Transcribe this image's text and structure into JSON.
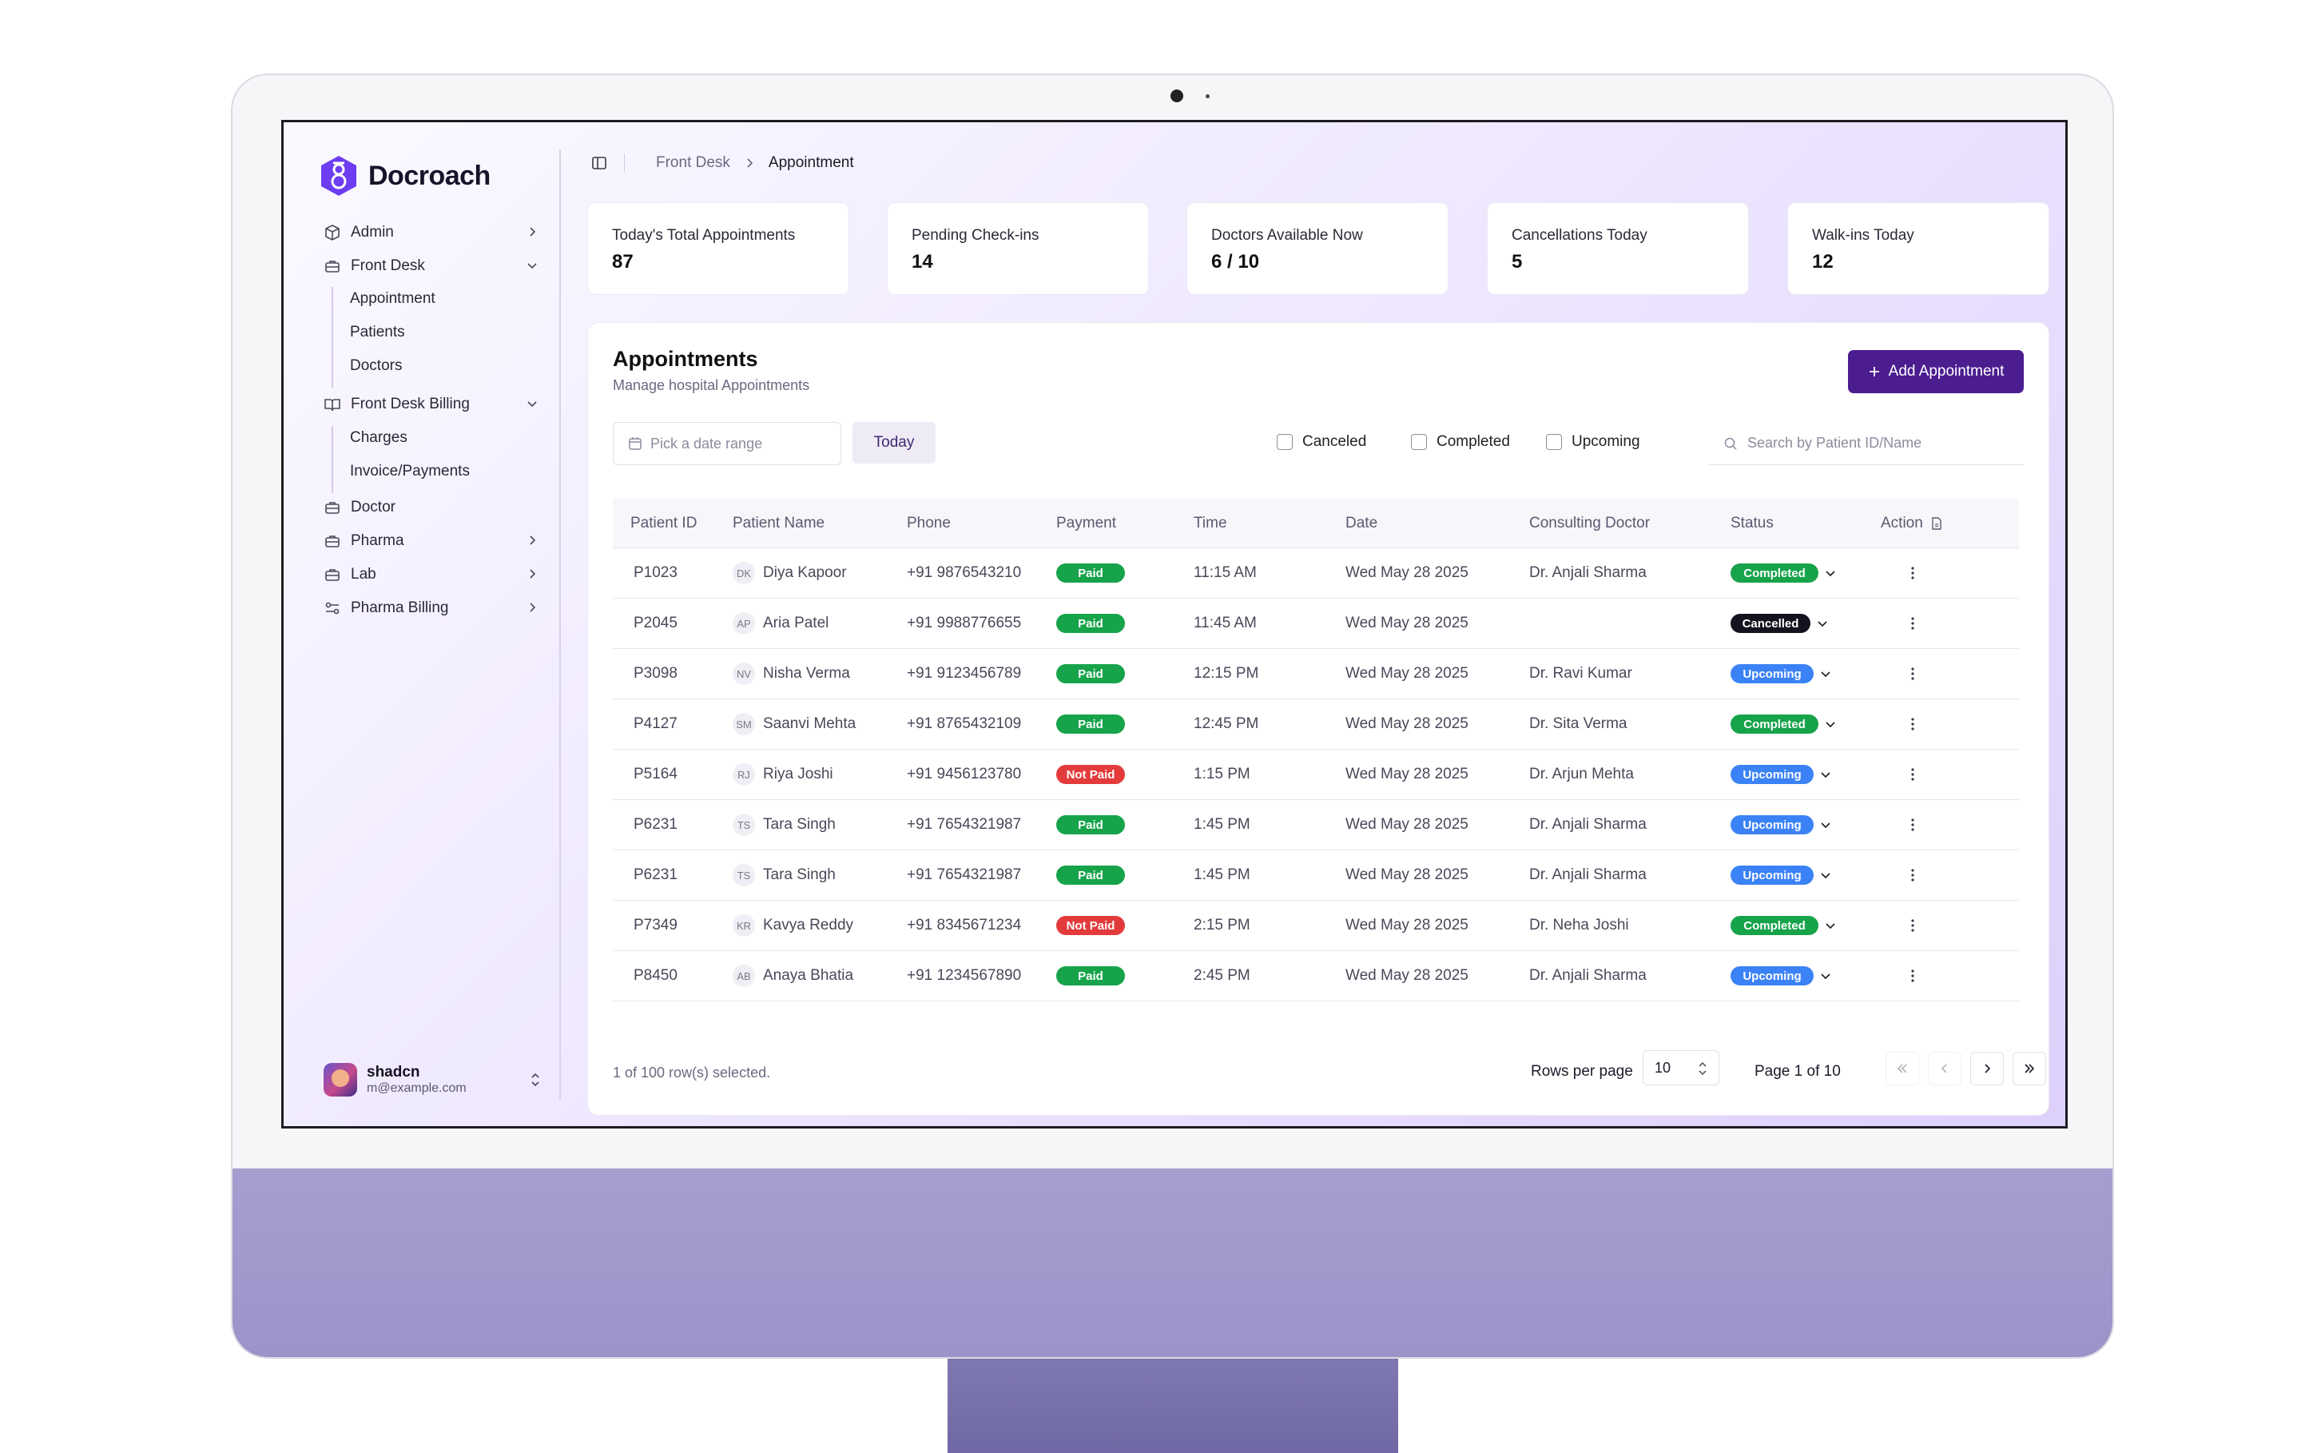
{
  "brand": {
    "name": "Docroach"
  },
  "sidebar": {
    "items": [
      {
        "label": "Admin",
        "icon": "package-icon"
      },
      {
        "label": "Front Desk",
        "icon": "briefcase-icon"
      },
      {
        "label": "Front Desk Billing",
        "icon": "book-open-icon"
      },
      {
        "label": "Doctor",
        "icon": "briefcase-icon"
      },
      {
        "label": "Pharma",
        "icon": "briefcase-icon"
      },
      {
        "label": "Lab",
        "icon": "briefcase-icon"
      },
      {
        "label": "Pharma Billing",
        "icon": "sliders-icon"
      }
    ],
    "front_desk_sub": [
      "Appointment",
      "Patients",
      "Doctors"
    ],
    "billing_sub": [
      "Charges",
      "Invoice/Payments"
    ]
  },
  "user": {
    "name": "shadcn",
    "email": "m@example.com"
  },
  "breadcrumb": {
    "parent": "Front Desk",
    "current": "Appointment"
  },
  "stats": [
    {
      "label": "Today's Total Appointments",
      "value": "87"
    },
    {
      "label": "Pending Check-ins",
      "value": "14"
    },
    {
      "label": "Doctors Available Now",
      "value": "6 / 10"
    },
    {
      "label": "Cancellations Today",
      "value": "5"
    },
    {
      "label": "Walk-ins Today",
      "value": "12"
    }
  ],
  "appointments": {
    "title": "Appointments",
    "subtitle": "Manage hospital Appointments",
    "add_label": "Add Appointment",
    "date_placeholder": "Pick a date range",
    "today_label": "Today",
    "filters": [
      "Canceled",
      "Completed",
      "Upcoming"
    ],
    "search_placeholder": "Search by Patient ID/Name",
    "columns": [
      "Patient ID",
      "Patient Name",
      "Phone",
      "Payment",
      "Time",
      "Date",
      "Consulting Doctor",
      "Status",
      "Action"
    ],
    "rows": [
      {
        "id": "P1023",
        "initials": "DK",
        "name": "Diya Kapoor",
        "phone": "+91 9876543210",
        "payment": "Paid",
        "time": "11:15 AM",
        "date": "Wed May 28 2025",
        "doctor": "Dr. Anjali Sharma",
        "status": "Completed"
      },
      {
        "id": "P2045",
        "initials": "AP",
        "name": "Aria Patel",
        "phone": "+91 9988776655",
        "payment": "Paid",
        "time": "11:45 AM",
        "date": "Wed May 28 2025",
        "doctor": "",
        "status": "Cancelled"
      },
      {
        "id": "P3098",
        "initials": "NV",
        "name": "Nisha Verma",
        "phone": "+91 9123456789",
        "payment": "Paid",
        "time": "12:15 PM",
        "date": "Wed May 28 2025",
        "doctor": "Dr. Ravi Kumar",
        "status": "Upcoming"
      },
      {
        "id": "P4127",
        "initials": "SM",
        "name": "Saanvi Mehta",
        "phone": "+91 8765432109",
        "payment": "Paid",
        "time": "12:45 PM",
        "date": "Wed May 28 2025",
        "doctor": "Dr. Sita Verma",
        "status": "Completed"
      },
      {
        "id": "P5164",
        "initials": "RJ",
        "name": "Riya Joshi",
        "phone": "+91 9456123780",
        "payment": "Not Paid",
        "time": "1:15 PM",
        "date": "Wed May 28 2025",
        "doctor": "Dr. Arjun Mehta",
        "status": "Upcoming"
      },
      {
        "id": "P6231",
        "initials": "TS",
        "name": "Tara Singh",
        "phone": "+91 7654321987",
        "payment": "Paid",
        "time": "1:45 PM",
        "date": "Wed May 28 2025",
        "doctor": "Dr. Anjali Sharma",
        "status": "Upcoming"
      },
      {
        "id": "P6231",
        "initials": "TS",
        "name": "Tara Singh",
        "phone": "+91 7654321987",
        "payment": "Paid",
        "time": "1:45 PM",
        "date": "Wed May 28 2025",
        "doctor": "Dr. Anjali Sharma",
        "status": "Upcoming"
      },
      {
        "id": "P7349",
        "initials": "KR",
        "name": "Kavya Reddy",
        "phone": "+91 8345671234",
        "payment": "Not Paid",
        "time": "2:15 PM",
        "date": "Wed May 28 2025",
        "doctor": "Dr. Neha Joshi",
        "status": "Completed"
      },
      {
        "id": "P8450",
        "initials": "AB",
        "name": "Anaya Bhatia",
        "phone": "+91 1234567890",
        "payment": "Paid",
        "time": "2:45 PM",
        "date": "Wed May 28 2025",
        "doctor": "Dr. Anjali Sharma",
        "status": "Upcoming"
      }
    ],
    "selection_text": "1 of 100 row(s) selected.",
    "rows_per_page_label": "Rows per page",
    "rows_per_page": "10",
    "page_label": "Page 1 of 10"
  },
  "colors": {
    "accent": "#4b1d8f",
    "paid": "#16a34a",
    "not_paid": "#e33b3b",
    "upcoming": "#3b82f6",
    "cancelled": "#131320"
  }
}
